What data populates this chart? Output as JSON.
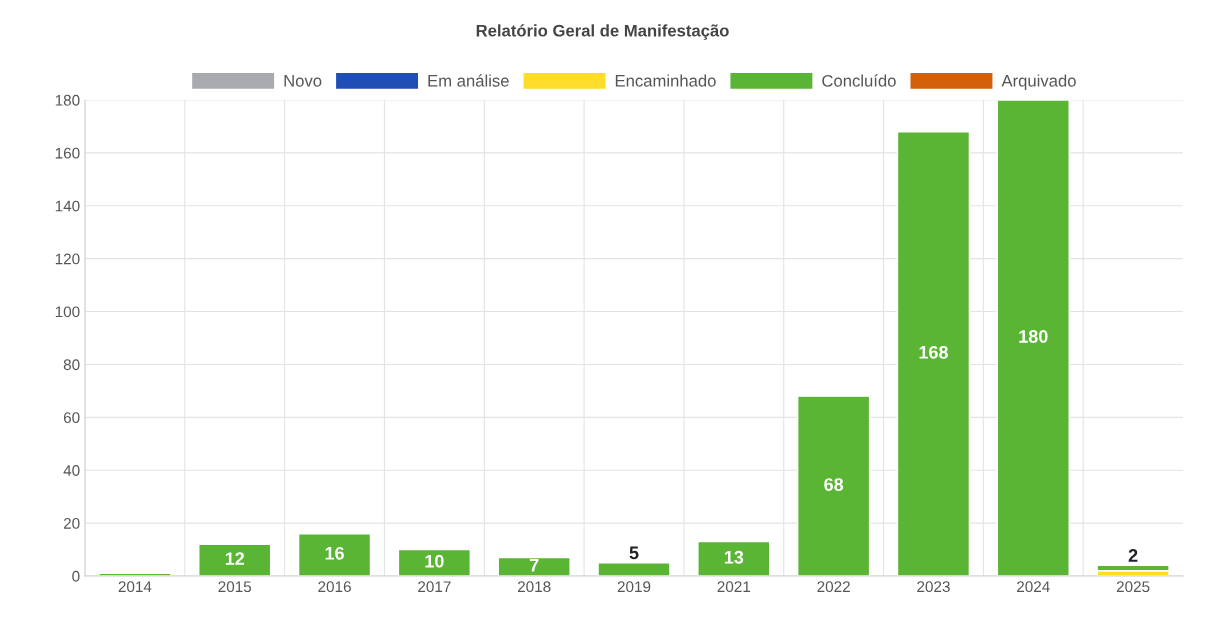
{
  "chart_data": {
    "type": "bar",
    "title": "Relatório Geral de Manifestação",
    "stacked": true,
    "categories": [
      "2014",
      "2015",
      "2016",
      "2017",
      "2018",
      "2019",
      "2021",
      "2022",
      "2023",
      "2024",
      "2025"
    ],
    "series": [
      {
        "name": "Novo",
        "color": "#a9a9b0",
        "values": [
          null,
          null,
          null,
          null,
          null,
          null,
          null,
          null,
          null,
          null,
          null
        ]
      },
      {
        "name": "Em análise",
        "color": "#1f4fb5",
        "values": [
          null,
          null,
          null,
          null,
          null,
          null,
          null,
          null,
          null,
          null,
          null
        ]
      },
      {
        "name": "Encaminhado",
        "color": "#fddc2b",
        "values": [
          null,
          null,
          null,
          null,
          null,
          null,
          null,
          null,
          null,
          null,
          2
        ]
      },
      {
        "name": "Concluído",
        "color": "#5ab535",
        "values": [
          1,
          12,
          16,
          10,
          7,
          5,
          13,
          68,
          168,
          180,
          2
        ],
        "value_labels": [
          null,
          "12",
          "16",
          "10",
          "7",
          "5",
          "13",
          "68",
          "168",
          "180",
          "2"
        ]
      },
      {
        "name": "Arquivado",
        "color": "#d2600a",
        "values": [
          null,
          null,
          null,
          null,
          null,
          null,
          null,
          null,
          null,
          null,
          null
        ]
      }
    ],
    "ylim": [
      0,
      180
    ],
    "yticks": [
      0,
      20,
      40,
      60,
      80,
      100,
      120,
      140,
      160,
      180
    ],
    "grid": true,
    "legend": "top"
  }
}
